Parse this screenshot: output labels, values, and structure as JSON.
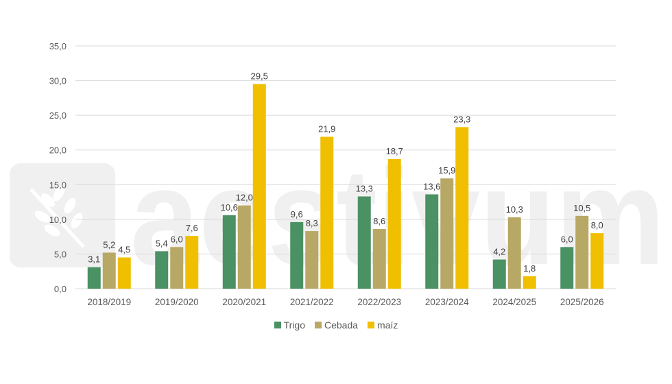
{
  "chart_data": {
    "type": "bar",
    "title": "",
    "xlabel": "",
    "ylabel": "",
    "ylim": [
      0,
      35
    ],
    "yticks": [
      "0,0",
      "5,0",
      "10,0",
      "15,0",
      "20,0",
      "25,0",
      "30,0",
      "35,0"
    ],
    "grid": true,
    "legend_position": "bottom",
    "categories": [
      "2018/2019",
      "2019/2020",
      "2020/2021",
      "2021/2022",
      "2022/2023",
      "2023/2024",
      "2024/2025",
      "2025/2026"
    ],
    "series": [
      {
        "name": "Trigo",
        "color": "#4a9163",
        "values": [
          3.1,
          5.4,
          10.6,
          9.6,
          13.3,
          13.6,
          4.2,
          6.0
        ],
        "labels": [
          "3,1",
          "5,4",
          "10,6",
          "9,6",
          "13,3",
          "13,6",
          "4,2",
          "6,0"
        ]
      },
      {
        "name": "Cebada",
        "color": "#b8a865",
        "values": [
          5.2,
          6.0,
          12.0,
          8.3,
          8.6,
          15.9,
          10.3,
          10.5
        ],
        "labels": [
          "5,2",
          "6,0",
          "12,0",
          "8,3",
          "8,6",
          "15,9",
          "10,3",
          "10,5"
        ]
      },
      {
        "name": "maíz",
        "color": "#f0bf00",
        "values": [
          4.5,
          7.6,
          29.5,
          21.9,
          18.7,
          23.3,
          1.8,
          8.0
        ],
        "labels": [
          "4,5",
          "7,6",
          "29,5",
          "21,9",
          "18,7",
          "23,3",
          "1,8",
          "8,0"
        ]
      }
    ]
  },
  "watermark": {
    "text": "aestivum",
    "icon": "wheat-icon"
  },
  "legend": {
    "items": [
      {
        "label": "Trigo",
        "color": "#4a9163"
      },
      {
        "label": "Cebada",
        "color": "#b8a865"
      },
      {
        "label": "maíz",
        "color": "#f0bf00"
      }
    ]
  }
}
